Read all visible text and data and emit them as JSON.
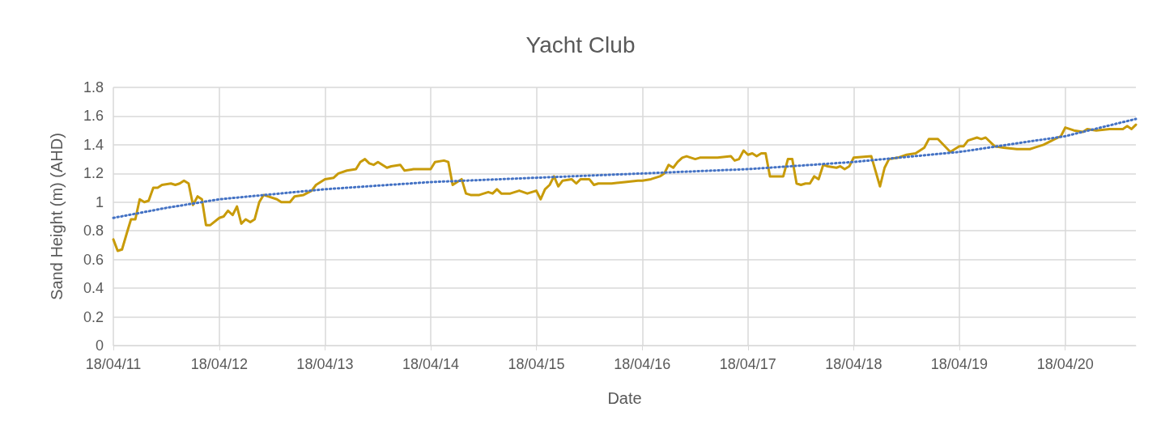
{
  "chart_data": {
    "type": "line",
    "title": "Yacht Club",
    "xlabel": "Date",
    "ylabel": "Sand Height (m) (AHD)",
    "grid": true,
    "xlim": [
      "2011-04-18",
      "2020-12-18"
    ],
    "xticks": [
      {
        "value": "2011-04-18",
        "label": "18/04/11"
      },
      {
        "value": "2012-04-18",
        "label": "18/04/12"
      },
      {
        "value": "2013-04-18",
        "label": "18/04/13"
      },
      {
        "value": "2014-04-18",
        "label": "18/04/14"
      },
      {
        "value": "2015-04-18",
        "label": "18/04/15"
      },
      {
        "value": "2016-04-18",
        "label": "18/04/16"
      },
      {
        "value": "2017-04-18",
        "label": "18/04/17"
      },
      {
        "value": "2018-04-18",
        "label": "18/04/18"
      },
      {
        "value": "2019-04-18",
        "label": "18/04/19"
      },
      {
        "value": "2020-04-18",
        "label": "18/04/20"
      }
    ],
    "ylim": [
      0,
      1.8
    ],
    "yticks": [
      0,
      0.2,
      0.4,
      0.6,
      0.8,
      1,
      1.2,
      1.4,
      1.6,
      1.8
    ],
    "series": [
      {
        "color": "#c89b0a",
        "line_style": "solid",
        "x": [
          "2011-04-18",
          "2011-05-03",
          "2011-05-18",
          "2011-06-03",
          "2011-06-18",
          "2011-07-03",
          "2011-07-18",
          "2011-08-03",
          "2011-08-18",
          "2011-09-03",
          "2011-09-18",
          "2011-10-03",
          "2011-11-03",
          "2011-11-18",
          "2011-12-03",
          "2011-12-18",
          "2012-01-03",
          "2012-01-18",
          "2012-02-03",
          "2012-02-18",
          "2012-03-03",
          "2012-03-18",
          "2012-04-18",
          "2012-05-03",
          "2012-05-18",
          "2012-06-03",
          "2012-06-18",
          "2012-07-03",
          "2012-07-18",
          "2012-08-03",
          "2012-08-18",
          "2012-09-03",
          "2012-09-18",
          "2012-10-03",
          "2012-11-03",
          "2012-11-18",
          "2012-12-18",
          "2013-01-03",
          "2013-02-03",
          "2013-03-03",
          "2013-03-18",
          "2013-04-18",
          "2013-05-18",
          "2013-06-03",
          "2013-07-03",
          "2013-08-03",
          "2013-08-18",
          "2013-09-03",
          "2013-09-18",
          "2013-10-03",
          "2013-10-18",
          "2013-11-18",
          "2013-12-03",
          "2014-01-03",
          "2014-01-18",
          "2014-02-18",
          "2014-03-18",
          "2014-04-18",
          "2014-05-03",
          "2014-06-03",
          "2014-06-18",
          "2014-07-03",
          "2014-07-18",
          "2014-08-03",
          "2014-08-18",
          "2014-09-03",
          "2014-10-03",
          "2014-11-03",
          "2014-11-18",
          "2014-12-03",
          "2014-12-18",
          "2015-01-18",
          "2015-02-18",
          "2015-03-18",
          "2015-04-18",
          "2015-05-03",
          "2015-05-18",
          "2015-06-03",
          "2015-06-18",
          "2015-07-03",
          "2015-07-18",
          "2015-08-18",
          "2015-09-03",
          "2015-09-18",
          "2015-10-18",
          "2015-11-03",
          "2015-11-18",
          "2016-01-03",
          "2016-02-18",
          "2016-04-03",
          "2016-04-18",
          "2016-05-18",
          "2016-06-18",
          "2016-07-03",
          "2016-07-18",
          "2016-08-03",
          "2016-08-18",
          "2016-09-03",
          "2016-09-18",
          "2016-10-03",
          "2016-10-18",
          "2016-11-03",
          "2016-12-03",
          "2017-01-03",
          "2017-02-18",
          "2017-03-03",
          "2017-03-18",
          "2017-04-03",
          "2017-04-18",
          "2017-05-03",
          "2017-05-18",
          "2017-06-03",
          "2017-06-18",
          "2017-07-03",
          "2017-08-18",
          "2017-09-03",
          "2017-09-18",
          "2017-10-03",
          "2017-10-18",
          "2017-11-03",
          "2017-11-18",
          "2017-12-03",
          "2017-12-18",
          "2018-01-03",
          "2018-01-18",
          "2018-02-18",
          "2018-03-03",
          "2018-03-18",
          "2018-04-03",
          "2018-04-18",
          "2018-06-18",
          "2018-07-18",
          "2018-08-03",
          "2018-08-18",
          "2018-09-18",
          "2018-10-18",
          "2018-11-18",
          "2018-12-18",
          "2019-01-03",
          "2019-02-03",
          "2019-03-18",
          "2019-04-18",
          "2019-05-03",
          "2019-05-18",
          "2019-06-18",
          "2019-07-03",
          "2019-07-18",
          "2019-08-18",
          "2019-09-18",
          "2019-11-03",
          "2019-12-18",
          "2020-01-03",
          "2020-02-03",
          "2020-03-03",
          "2020-04-03",
          "2020-04-18",
          "2020-05-18",
          "2020-06-18",
          "2020-07-03",
          "2020-08-03",
          "2020-09-18",
          "2020-11-03",
          "2020-11-18",
          "2020-12-03",
          "2020-12-18"
        ],
        "values": [
          0.74,
          0.66,
          0.67,
          0.78,
          0.88,
          0.88,
          1.02,
          1.0,
          1.01,
          1.1,
          1.1,
          1.12,
          1.13,
          1.12,
          1.13,
          1.15,
          1.13,
          0.98,
          1.04,
          1.02,
          0.84,
          0.84,
          0.89,
          0.9,
          0.94,
          0.91,
          0.97,
          0.85,
          0.88,
          0.86,
          0.88,
          1.0,
          1.05,
          1.04,
          1.02,
          1.0,
          1.0,
          1.04,
          1.05,
          1.08,
          1.12,
          1.16,
          1.17,
          1.2,
          1.22,
          1.23,
          1.28,
          1.3,
          1.27,
          1.26,
          1.28,
          1.24,
          1.25,
          1.26,
          1.22,
          1.23,
          1.23,
          1.23,
          1.28,
          1.29,
          1.28,
          1.12,
          1.14,
          1.16,
          1.06,
          1.05,
          1.05,
          1.07,
          1.06,
          1.09,
          1.06,
          1.06,
          1.08,
          1.06,
          1.08,
          1.02,
          1.09,
          1.12,
          1.18,
          1.11,
          1.15,
          1.16,
          1.13,
          1.16,
          1.16,
          1.12,
          1.13,
          1.13,
          1.14,
          1.15,
          1.15,
          1.16,
          1.18,
          1.2,
          1.26,
          1.24,
          1.28,
          1.31,
          1.32,
          1.31,
          1.3,
          1.31,
          1.31,
          1.31,
          1.32,
          1.29,
          1.3,
          1.36,
          1.33,
          1.34,
          1.32,
          1.34,
          1.34,
          1.18,
          1.18,
          1.3,
          1.3,
          1.13,
          1.12,
          1.13,
          1.13,
          1.18,
          1.16,
          1.26,
          1.25,
          1.24,
          1.25,
          1.23,
          1.25,
          1.31,
          1.32,
          1.11,
          1.24,
          1.3,
          1.31,
          1.33,
          1.34,
          1.38,
          1.44,
          1.44,
          1.35,
          1.39,
          1.39,
          1.43,
          1.45,
          1.44,
          1.45,
          1.39,
          1.38,
          1.37,
          1.37,
          1.38,
          1.4,
          1.43,
          1.46,
          1.52,
          1.5,
          1.49,
          1.51,
          1.5,
          1.51,
          1.51,
          1.53,
          1.51,
          1.54
        ]
      },
      {
        "color": "#4472c4",
        "line_style": "dotted",
        "x": [
          "2011-04-18",
          "2011-10-18",
          "2012-04-18",
          "2013-04-18",
          "2014-04-18",
          "2015-04-18",
          "2016-04-18",
          "2017-04-18",
          "2018-04-18",
          "2019-04-18",
          "2020-04-18",
          "2020-12-18"
        ],
        "values": [
          0.89,
          0.96,
          1.02,
          1.09,
          1.14,
          1.17,
          1.2,
          1.23,
          1.28,
          1.35,
          1.46,
          1.58
        ]
      }
    ]
  }
}
